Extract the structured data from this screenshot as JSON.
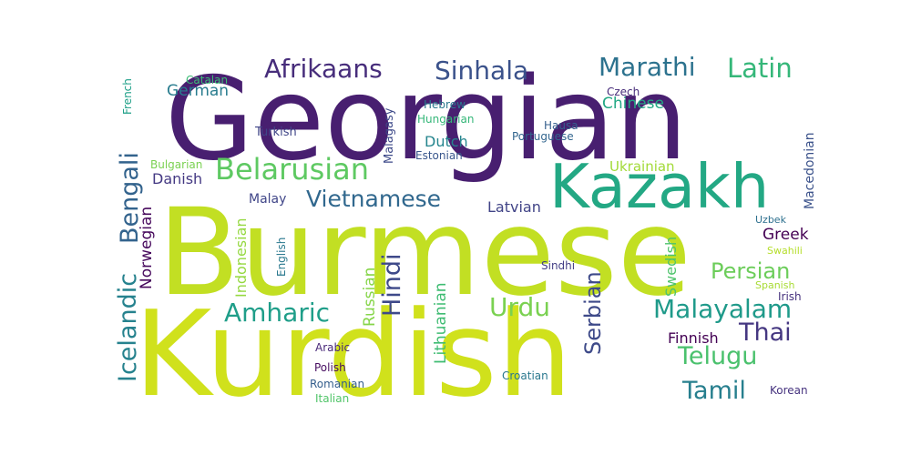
{
  "words": {
    "burmese": {
      "text": "Burmese",
      "color": "#c2df23"
    },
    "kurdish": {
      "text": "Kurdish",
      "color": "#d0e11c"
    },
    "georgian": {
      "text": "Georgian",
      "color": "#481f70"
    },
    "kazakh": {
      "text": "Kazakh",
      "color": "#23a884"
    },
    "belarusian": {
      "text": "Belarusian",
      "color": "#5ec962"
    },
    "vietnamese": {
      "text": "Vietnamese",
      "color": "#31688e"
    },
    "afrikaans": {
      "text": "Afrikaans",
      "color": "#472d7b"
    },
    "sinhala": {
      "text": "Sinhala",
      "color": "#3b528b"
    },
    "marathi": {
      "text": "Marathi",
      "color": "#2c728e"
    },
    "latin": {
      "text": "Latin",
      "color": "#35b779"
    },
    "german": {
      "text": "German",
      "color": "#287c8e"
    },
    "chinese": {
      "text": "Chinese",
      "color": "#22a884"
    },
    "bengali": {
      "text": "Bengali",
      "color": "#33638d"
    },
    "icelandic": {
      "text": "Icelandic",
      "color": "#26828e"
    },
    "hindi": {
      "text": "Hindi",
      "color": "#3e4989"
    },
    "amharic": {
      "text": "Amharic",
      "color": "#1f9e89"
    },
    "urdu": {
      "text": "Urdu",
      "color": "#7ad151"
    },
    "malayalam": {
      "text": "Malayalam",
      "color": "#1f9a8a"
    },
    "persian": {
      "text": "Persian",
      "color": "#6ccd5a"
    },
    "thai": {
      "text": "Thai",
      "color": "#453781"
    },
    "telugu": {
      "text": "Telugu",
      "color": "#4ac16d"
    },
    "tamil": {
      "text": "Tamil",
      "color": "#277f8e"
    },
    "serbian": {
      "text": "Serbian",
      "color": "#3e4a89"
    },
    "danish": {
      "text": "Danish",
      "color": "#443983"
    },
    "malay": {
      "text": "Malay",
      "color": "#404688"
    },
    "latvian": {
      "text": "Latvian",
      "color": "#414487"
    },
    "ukrainian": {
      "text": "Ukrainian",
      "color": "#a2da37"
    },
    "dutch": {
      "text": "Dutch",
      "color": "#25858e"
    },
    "greek": {
      "text": "Greek",
      "color": "#440154"
    },
    "finnish": {
      "text": "Finnish",
      "color": "#440154"
    },
    "catalan": {
      "text": "Catalan",
      "color": "#3bbb75"
    },
    "french": {
      "text": "French",
      "color": "#1fa088"
    },
    "turkish": {
      "text": "Turkish",
      "color": "#404688"
    },
    "bulgarian": {
      "text": "Bulgarian",
      "color": "#7ad151"
    },
    "norwegian": {
      "text": "Norwegian",
      "color": "#46085c"
    },
    "indonesian": {
      "text": "Indonesian",
      "color": "#95d840"
    },
    "english": {
      "text": "English",
      "color": "#2a788e"
    },
    "russian": {
      "text": "Russian",
      "color": "#86d549"
    },
    "lithuanian": {
      "text": "Lithuanian",
      "color": "#3fbc73"
    },
    "malagasy": {
      "text": "Malagasy",
      "color": "#3e4a89"
    },
    "hebrew": {
      "text": "Hebrew",
      "color": "#2a788e"
    },
    "hungarian": {
      "text": "Hungarian",
      "color": "#35b779"
    },
    "estonian": {
      "text": "Estonian",
      "color": "#39568c"
    },
    "czech": {
      "text": "Czech",
      "color": "#472c7a"
    },
    "hausa": {
      "text": "Hausa",
      "color": "#355f8d"
    },
    "portuguese": {
      "text": "Portuguese",
      "color": "#32658e"
    },
    "swedish": {
      "text": "Swedish",
      "color": "#4ec36b"
    },
    "sindhi": {
      "text": "Sindhi",
      "color": "#433e85"
    },
    "macedonian": {
      "text": "Macedonian",
      "color": "#3b528b"
    },
    "uzbek": {
      "text": "Uzbek",
      "color": "#2d708e"
    },
    "swahili": {
      "text": "Swahili",
      "color": "#b5de2b"
    },
    "spanish": {
      "text": "Spanish",
      "color": "#a8db34"
    },
    "irish": {
      "text": "Irish",
      "color": "#46327e"
    },
    "arabic": {
      "text": "Arabic",
      "color": "#482878"
    },
    "polish": {
      "text": "Polish",
      "color": "#470d60"
    },
    "romanian": {
      "text": "Romanian",
      "color": "#355f8d"
    },
    "italian": {
      "text": "Italian",
      "color": "#52c569"
    },
    "croatian": {
      "text": "Croatian",
      "color": "#2a788e"
    },
    "korean": {
      "text": "Korean",
      "color": "#46337f"
    }
  }
}
